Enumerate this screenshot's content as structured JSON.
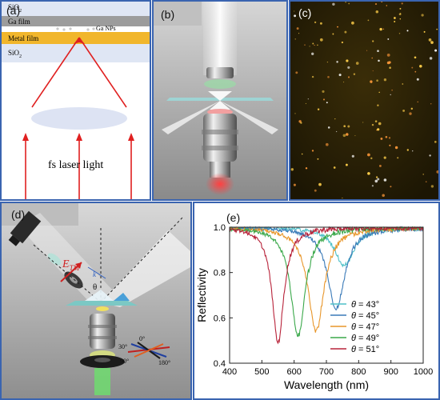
{
  "panel_a": {
    "label": "(a)",
    "layer_sio2_top": "SiO",
    "layer_sio2_top_sub": "2",
    "layer_ga": "Ga film",
    "layer_nps": "Ga NPs",
    "layer_metal": "Metal film",
    "layer_sio2_bottom": "SiO",
    "layer_sio2_bottom_sub": "2",
    "laser_text": "fs laser light"
  },
  "panel_b": {
    "label": "(b)"
  },
  "panel_c": {
    "label": "(c)"
  },
  "panel_d": {
    "label": "(d)",
    "field_symbol": "E",
    "field_sub": "TM",
    "k_symbol": "k",
    "theta_symbol": "θ",
    "angle_0": "0°",
    "angle_30": "30°",
    "angle_90": "90°",
    "angle_180": "180°"
  },
  "panel_e": {
    "label": "(e)"
  },
  "chart_data": {
    "type": "line",
    "xlabel": "Wavelength (nm)",
    "ylabel": "Reflectivity",
    "xlim": [
      400,
      1000
    ],
    "ylim": [
      0.4,
      1.0
    ],
    "xticks": [
      400,
      500,
      600,
      700,
      800,
      900,
      1000
    ],
    "yticks": [
      0.4,
      0.6,
      0.8,
      1.0
    ],
    "xtick_labels": [
      "400",
      "500",
      "600",
      "700",
      "800",
      "900",
      "1000"
    ],
    "ytick_labels": [
      "0.4",
      "0.6",
      "0.8",
      "1.0"
    ],
    "grid": false,
    "legend_position": "bottom-right",
    "legend_symbol": "θ",
    "series": [
      {
        "name": "= 43°",
        "color": "#4fc0c8",
        "dip_center": 755,
        "dip_min": 0.83,
        "dip_width": 35
      },
      {
        "name": "= 45°",
        "color": "#3a7ab8",
        "dip_center": 730,
        "dip_min": 0.64,
        "dip_width": 32
      },
      {
        "name": "= 47°",
        "color": "#e8962a",
        "dip_center": 668,
        "dip_min": 0.54,
        "dip_width": 30
      },
      {
        "name": "= 49°",
        "color": "#3aa84a",
        "dip_center": 612,
        "dip_min": 0.52,
        "dip_width": 27
      },
      {
        "name": "= 51°",
        "color": "#b8233a",
        "dip_center": 550,
        "dip_min": 0.49,
        "dip_width": 22
      }
    ]
  }
}
